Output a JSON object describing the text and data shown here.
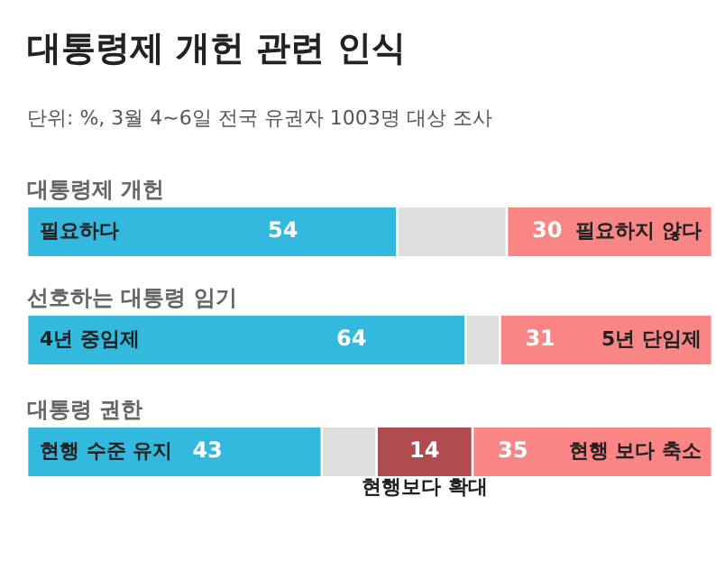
{
  "chart_data": [
    {
      "type": "bar",
      "orientation": "horizontal",
      "stacked": true,
      "title": "대통령제 개헌 관련 인식",
      "subtitle": "단위: %, 3월 4~6일 전국 유권자 1003명 대상 조사",
      "categories": [
        "대통령제 개헌"
      ],
      "xlim": [
        0,
        100
      ],
      "tick_labels": false,
      "legend": false,
      "series": [
        {
          "name": "필요하다",
          "color": "#33b8de",
          "values": [
            54
          ],
          "value_labels": [
            "54"
          ]
        },
        {
          "color": "#dedede",
          "values": [
            16
          ],
          "value_labels": [
            null
          ]
        },
        {
          "name": "필요하지 않다",
          "color": "#f98585",
          "values": [
            30
          ],
          "value_labels": [
            "30"
          ]
        }
      ]
    },
    {
      "type": "bar",
      "orientation": "horizontal",
      "stacked": true,
      "categories": [
        "선호하는 대통령 임기"
      ],
      "xlim": [
        0,
        100
      ],
      "tick_labels": false,
      "legend": false,
      "series": [
        {
          "name": "4년 중임제",
          "color": "#33b8de",
          "values": [
            64
          ],
          "value_labels": [
            "64"
          ]
        },
        {
          "color": "#dedede",
          "values": [
            5
          ],
          "value_labels": [
            null
          ]
        },
        {
          "name": "5년 단임제",
          "color": "#f98585",
          "values": [
            31
          ],
          "value_labels": [
            "31"
          ]
        }
      ]
    },
    {
      "type": "bar",
      "orientation": "horizontal",
      "stacked": true,
      "categories": [
        "대통령 권한"
      ],
      "xlim": [
        0,
        100
      ],
      "tick_labels": false,
      "legend": false,
      "series": [
        {
          "name": "현행 수준 유지",
          "color": "#33b8de",
          "values": [
            43
          ],
          "value_labels": [
            "43"
          ]
        },
        {
          "color": "#dedede",
          "values": [
            8
          ],
          "value_labels": [
            null
          ]
        },
        {
          "name": "현행보다 확대",
          "color": "#b04c50",
          "values": [
            14
          ],
          "value_labels": [
            "14"
          ]
        },
        {
          "name": "현행 보다 축소",
          "color": "#f98585",
          "values": [
            35
          ],
          "value_labels": [
            "35"
          ]
        }
      ]
    }
  ]
}
